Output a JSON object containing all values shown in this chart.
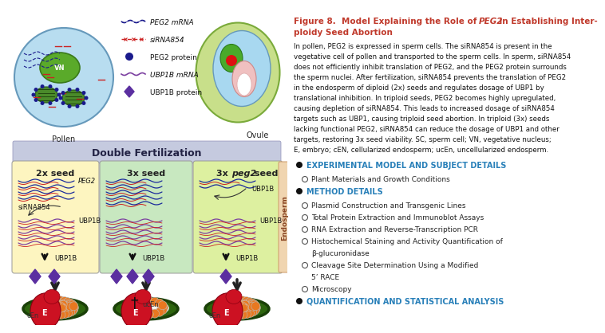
{
  "title_part1": "Figure 8.  Model Explaining the Role of ",
  "title_peg2": "PEG2",
  "title_part2": " in Establishing Inter-",
  "title_line2": "ploidy Seed Abortion",
  "title_color": "#c0392b",
  "body_text": "In pollen, PEG2 is expressed in sperm cells. The siRNA854 is present in the\nvegetative cell of pollen and transported to the sperm cells. In sperm, siRNA854\ndoes not efficiently inhibit translation of PEG2, and the PEG2 protein surrounds\nthe sperm nuclei. After fertilization, siRNA854 prevents the translation of PEG2\nin the endosperm of diploid (2x) seeds and regulates dosage of UBP1 by\ntranslational inhibition. In triploid seeds, PEG2 becomes highly upregulated,\ncausing depletion of siRNA854. This leads to increased dosage of siRNA854\ntargets such as UBP1, causing triploid seed abortion. In triploid (3x) seeds\nlacking functional PEG2, siRNA854 can reduce the dosage of UBP1 and other\ntargets, restoring 3x seed viability. SC, sperm cell; VN, vegetative nucleus;\nE, embryo; cEN, cellularized endosperm; ucEn, uncellularized endosperm.",
  "bullets": [
    {
      "text": "EXPERIMENTAL MODEL AND SUBJECT DETAILS",
      "level": 0,
      "color": "#2980b9"
    },
    {
      "text": "Plant Materials and Growth Conditions",
      "level": 1,
      "color": "#222222"
    },
    {
      "text": "METHOD DETAILS",
      "level": 0,
      "color": "#2980b9"
    },
    {
      "text": "Plasmid Construction and Transgenic Lines",
      "level": 1,
      "color": "#222222"
    },
    {
      "text": "Total Protein Extraction and Immunoblot Assays",
      "level": 1,
      "color": "#222222"
    },
    {
      "text": "RNA Extraction and Reverse-Transcription PCR",
      "level": 1,
      "color": "#222222"
    },
    {
      "text": "Histochemical Staining and Activity Quantification of",
      "level": 1,
      "color": "#222222"
    },
    {
      "text": "β-glucuronidase",
      "level": 2,
      "color": "#222222"
    },
    {
      "text": "Cleavage Site Determination Using a Modified",
      "level": 1,
      "color": "#222222"
    },
    {
      "text": "5’ RACE",
      "level": 2,
      "color": "#222222"
    },
    {
      "text": "Microscopy",
      "level": 1,
      "color": "#222222"
    },
    {
      "text": "QUANTIFICATION AND STATISTICAL ANALYSIS",
      "level": 0,
      "color": "#2980b9"
    }
  ],
  "double_fert_label": "Double Fertilization",
  "double_fert_bg": "#c5cadf",
  "box1_label": "2x seed",
  "box2_label": "3x seed",
  "box3_label": "3x peg2 seed",
  "box1_bg": "#fdf5c0",
  "box2_bg": "#c8e8c0",
  "box3_bg": "#ddf0a0",
  "endosperm_label": "Endosperm",
  "endosperm_bg": "#f0d5b0",
  "pollen_label": "Pollen",
  "ovule_label": "Ovule",
  "bg_color": "#ffffff",
  "blue_mrna": "#1a2a9c",
  "red_sirna": "#cc2222",
  "purple_mrna": "#7b3fa0",
  "purple_prot": "#5b2fa0"
}
